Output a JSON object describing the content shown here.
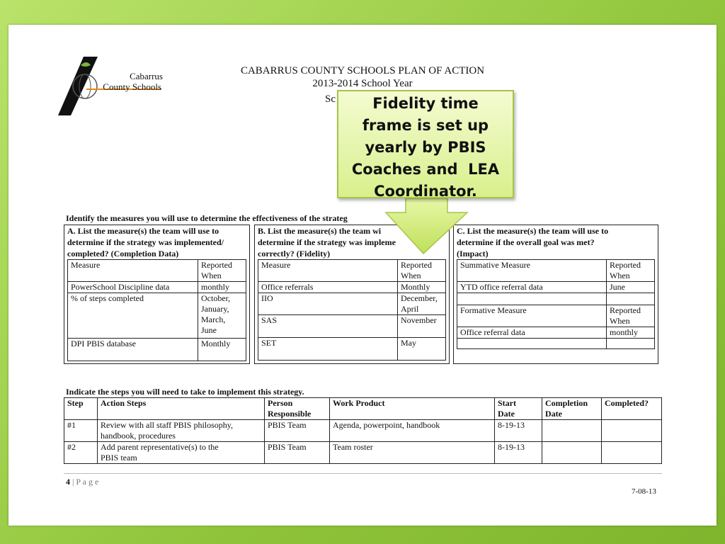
{
  "logo": {
    "line1": "Cabarrus",
    "line2": "County Schools"
  },
  "header": {
    "title": "CABARRUS COUNTY SCHOOLS PLAN OF ACTION",
    "year": "2013-2014 School Year",
    "partial": "Sc"
  },
  "callout": {
    "lines": [
      "Fidelity time",
      "frame is set up",
      "yearly by PBIS",
      "Coaches and  LEA",
      "Coordinator."
    ],
    "color": "#d9f08c"
  },
  "measures": {
    "intro": "Identify the measures you will use to determine the effectiveness of the strateg",
    "a": {
      "heading": [
        "A.  List the measure(s) the team will use to",
        "determine if the strategy was implemented/",
        "completed? (Completion Data)"
      ],
      "col1": "Measure",
      "col2": [
        "Reported",
        "When"
      ],
      "rows": [
        [
          "PowerSchool Discipline data",
          "monthly"
        ],
        [
          "% of steps completed",
          "October,\nJanuary,\nMarch,\nJune"
        ],
        [
          "DPI PBIS database",
          "Monthly"
        ]
      ]
    },
    "b": {
      "heading": [
        "B. List the measure(s) the team wi",
        "determine if the strategy was impleme",
        "correctly? (Fidelity)"
      ],
      "col1": "Measure",
      "col2": [
        "Reported",
        "When"
      ],
      "rows": [
        [
          "Office referrals",
          "Monthly"
        ],
        [
          "IIO",
          "December,\nApril"
        ],
        [
          "SAS",
          "November"
        ],
        [
          "SET",
          "May"
        ]
      ]
    },
    "c": {
      "heading": [
        "C. List the measure(s) the team will use to",
        "determine if the overall goal was met?",
        "(Impact)"
      ],
      "col1": "Summative Measure",
      "col2": [
        "Reported",
        "When"
      ],
      "rows": [
        [
          "YTD office referral data",
          "June"
        ]
      ],
      "col3": "Formative Measure",
      "col4": [
        "Reported",
        "When"
      ],
      "rows2": [
        [
          "Office referral data",
          "monthly"
        ]
      ]
    }
  },
  "steps": {
    "intro": "Indicate the steps you will need to take to implement this strategy.",
    "columns": [
      "Step",
      "Action Steps",
      "Person\nResponsible",
      "Work Product",
      "Start\nDate",
      "Completion\nDate",
      "Completed?"
    ],
    "rows": [
      [
        "#1",
        "Review with all staff PBIS philosophy,\nhandbook, procedures",
        "PBIS Team",
        "Agenda, powerpoint, handbook",
        "8-19-13",
        "",
        ""
      ],
      [
        "#2",
        "Add parent representative(s) to the\nPBIS team",
        "PBIS Team",
        "Team roster",
        "8-19-13",
        "",
        ""
      ]
    ]
  },
  "footer": {
    "page_num": "4",
    "page_label": "| P a g e",
    "date": "7-08-13"
  }
}
